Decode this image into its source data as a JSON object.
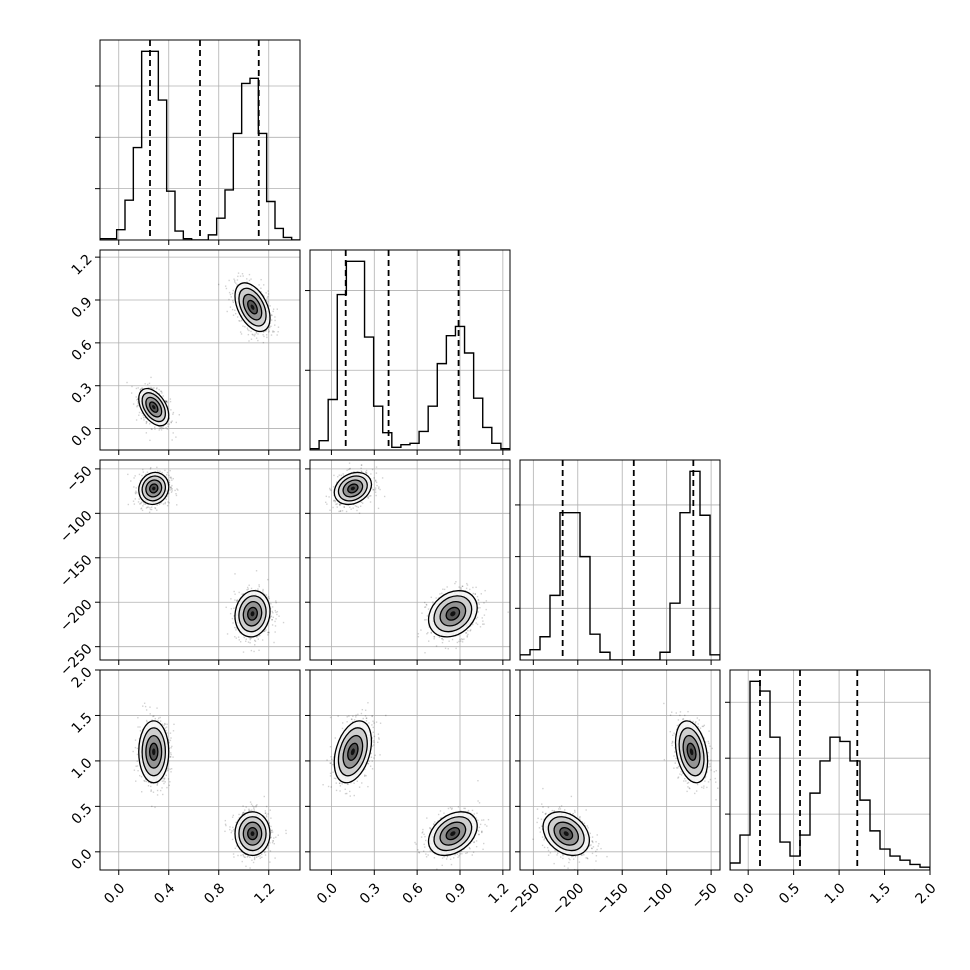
{
  "chart_data": {
    "type": "corner",
    "grid": true,
    "colors": {
      "line": "#000000",
      "grid": "#b0b0b0",
      "scatter": "#000000"
    },
    "parameters": [
      {
        "range": [
          -0.15,
          1.45
        ],
        "ticks": [
          0.0,
          0.4,
          0.8,
          1.2
        ],
        "tick_labels": [
          "0.0",
          "0.4",
          "0.8",
          "1.2"
        ],
        "quantiles": [
          0.25,
          0.65,
          1.12
        ],
        "hist": [
          0.01,
          0.01,
          0.08,
          0.31,
          0.72,
          1.47,
          1.47,
          1.09,
          0.38,
          0.07,
          0.01,
          0.0,
          0.0,
          0.04,
          0.17,
          0.39,
          0.83,
          1.22,
          1.26,
          0.83,
          0.3,
          0.09,
          0.02,
          0.0
        ],
        "hist_yticks": [
          0.4,
          0.8,
          1.2
        ],
        "clusters": [
          {
            "mean": 0.28,
            "sd": 0.06
          },
          {
            "mean": 1.07,
            "sd": 0.07
          }
        ]
      },
      {
        "range": [
          -0.15,
          1.25
        ],
        "ticks": [
          0.0,
          0.3,
          0.6,
          0.9,
          1.2
        ],
        "tick_labels": [
          "0.0",
          "0.3",
          "0.6",
          "0.9",
          "1.2"
        ],
        "quantiles": [
          0.1,
          0.4,
          0.89
        ],
        "hist": [
          0.01,
          0.07,
          0.38,
          1.17,
          1.42,
          1.42,
          0.85,
          0.33,
          0.13,
          0.02,
          0.04,
          0.05,
          0.14,
          0.33,
          0.65,
          0.86,
          0.93,
          0.73,
          0.39,
          0.17,
          0.05,
          0.01
        ],
        "hist_yticks": [
          0.6,
          1.2
        ],
        "clusters": [
          {
            "mean": 0.15,
            "sd": 0.065
          },
          {
            "mean": 0.85,
            "sd": 0.085
          }
        ]
      },
      {
        "range": [
          -265,
          -40
        ],
        "ticks": [
          -250,
          -200,
          -150,
          -100,
          -50
        ],
        "tick_labels": [
          "−250",
          "−200",
          "−150",
          "−100",
          "−50"
        ],
        "quantiles": [
          -217,
          -137,
          -70
        ],
        "hist": [
          0.002,
          0.004,
          0.009,
          0.025,
          0.057,
          0.057,
          0.04,
          0.01,
          0.003,
          0.0,
          0.0,
          0.0,
          0.0,
          0.0,
          0.003,
          0.022,
          0.057,
          0.073,
          0.056,
          0.002
        ],
        "hist_yticks": [
          0.02,
          0.04,
          0.06
        ],
        "clusters": [
          {
            "mean": -72,
            "sd": 9.0
          },
          {
            "mean": -213,
            "sd": 13.0
          }
        ]
      },
      {
        "range": [
          -0.2,
          2.0
        ],
        "ticks": [
          0.0,
          0.5,
          1.0,
          1.5,
          2.0
        ],
        "tick_labels": [
          "0.0",
          "0.5",
          "1.0",
          "1.5",
          "2.0"
        ],
        "quantiles": [
          0.13,
          0.57,
          1.2
        ],
        "hist": [
          0.05,
          0.25,
          1.35,
          1.28,
          0.95,
          0.2,
          0.1,
          0.25,
          0.55,
          0.78,
          0.95,
          0.92,
          0.78,
          0.5,
          0.28,
          0.15,
          0.1,
          0.07,
          0.04,
          0.02
        ],
        "hist_yticks": [
          0.4,
          0.8,
          1.2
        ],
        "clusters": [
          {
            "mean": 1.1,
            "sd": 0.17
          },
          {
            "mean": 0.2,
            "sd": 0.12
          }
        ]
      }
    ],
    "correlations": [
      [
        1,
        -0.45,
        0.1,
        0.0
      ],
      [
        -0.45,
        1,
        0.25,
        0.35
      ],
      [
        0.1,
        0.25,
        1,
        -0.3
      ],
      [
        0.0,
        0.35,
        -0.3,
        1
      ]
    ]
  }
}
